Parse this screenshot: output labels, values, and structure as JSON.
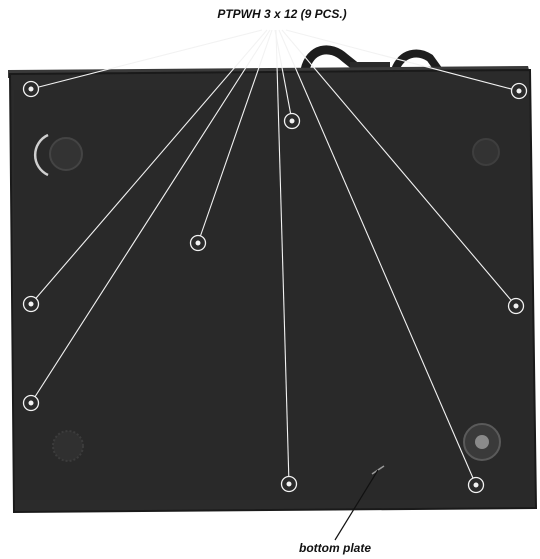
{
  "screw_callout": {
    "label": "PTPWH 3 x 12 (9 PCS.)"
  },
  "part_label": {
    "label": "bottom plate"
  },
  "colors": {
    "background": "#ffffff",
    "plate": "#2b2b2b",
    "plate_edge": "#1a1a1a",
    "leader_line": "#f2f2f2",
    "ink": "#111111"
  }
}
